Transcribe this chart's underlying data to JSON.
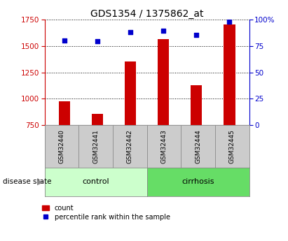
{
  "title": "GDS1354 / 1375862_at",
  "categories": [
    "GSM32440",
    "GSM32441",
    "GSM32442",
    "GSM32443",
    "GSM32444",
    "GSM32445"
  ],
  "counts": [
    975,
    855,
    1350,
    1560,
    1130,
    1700
  ],
  "percentiles": [
    80,
    79,
    88,
    89,
    85,
    98
  ],
  "ylim_left": [
    750,
    1750
  ],
  "ylim_right": [
    0,
    100
  ],
  "yticks_left": [
    750,
    1000,
    1250,
    1500,
    1750
  ],
  "yticks_right": [
    0,
    25,
    50,
    75,
    100
  ],
  "ytick_labels_right": [
    "0",
    "25",
    "50",
    "75",
    "100%"
  ],
  "bar_color": "#cc0000",
  "dot_color": "#0000cc",
  "bar_width": 0.35,
  "control_label": "control",
  "cirrhosis_label": "cirrhosis",
  "disease_state_label": "disease state",
  "legend_count": "count",
  "legend_percentile": "percentile rank within the sample",
  "control_color": "#ccffcc",
  "cirrhosis_color": "#66dd66",
  "title_fontsize": 10,
  "axis_left_color": "#cc0000",
  "axis_right_color": "#0000cc",
  "label_box_color": "#cccccc",
  "n_control": 3,
  "n_cirrhosis": 3
}
